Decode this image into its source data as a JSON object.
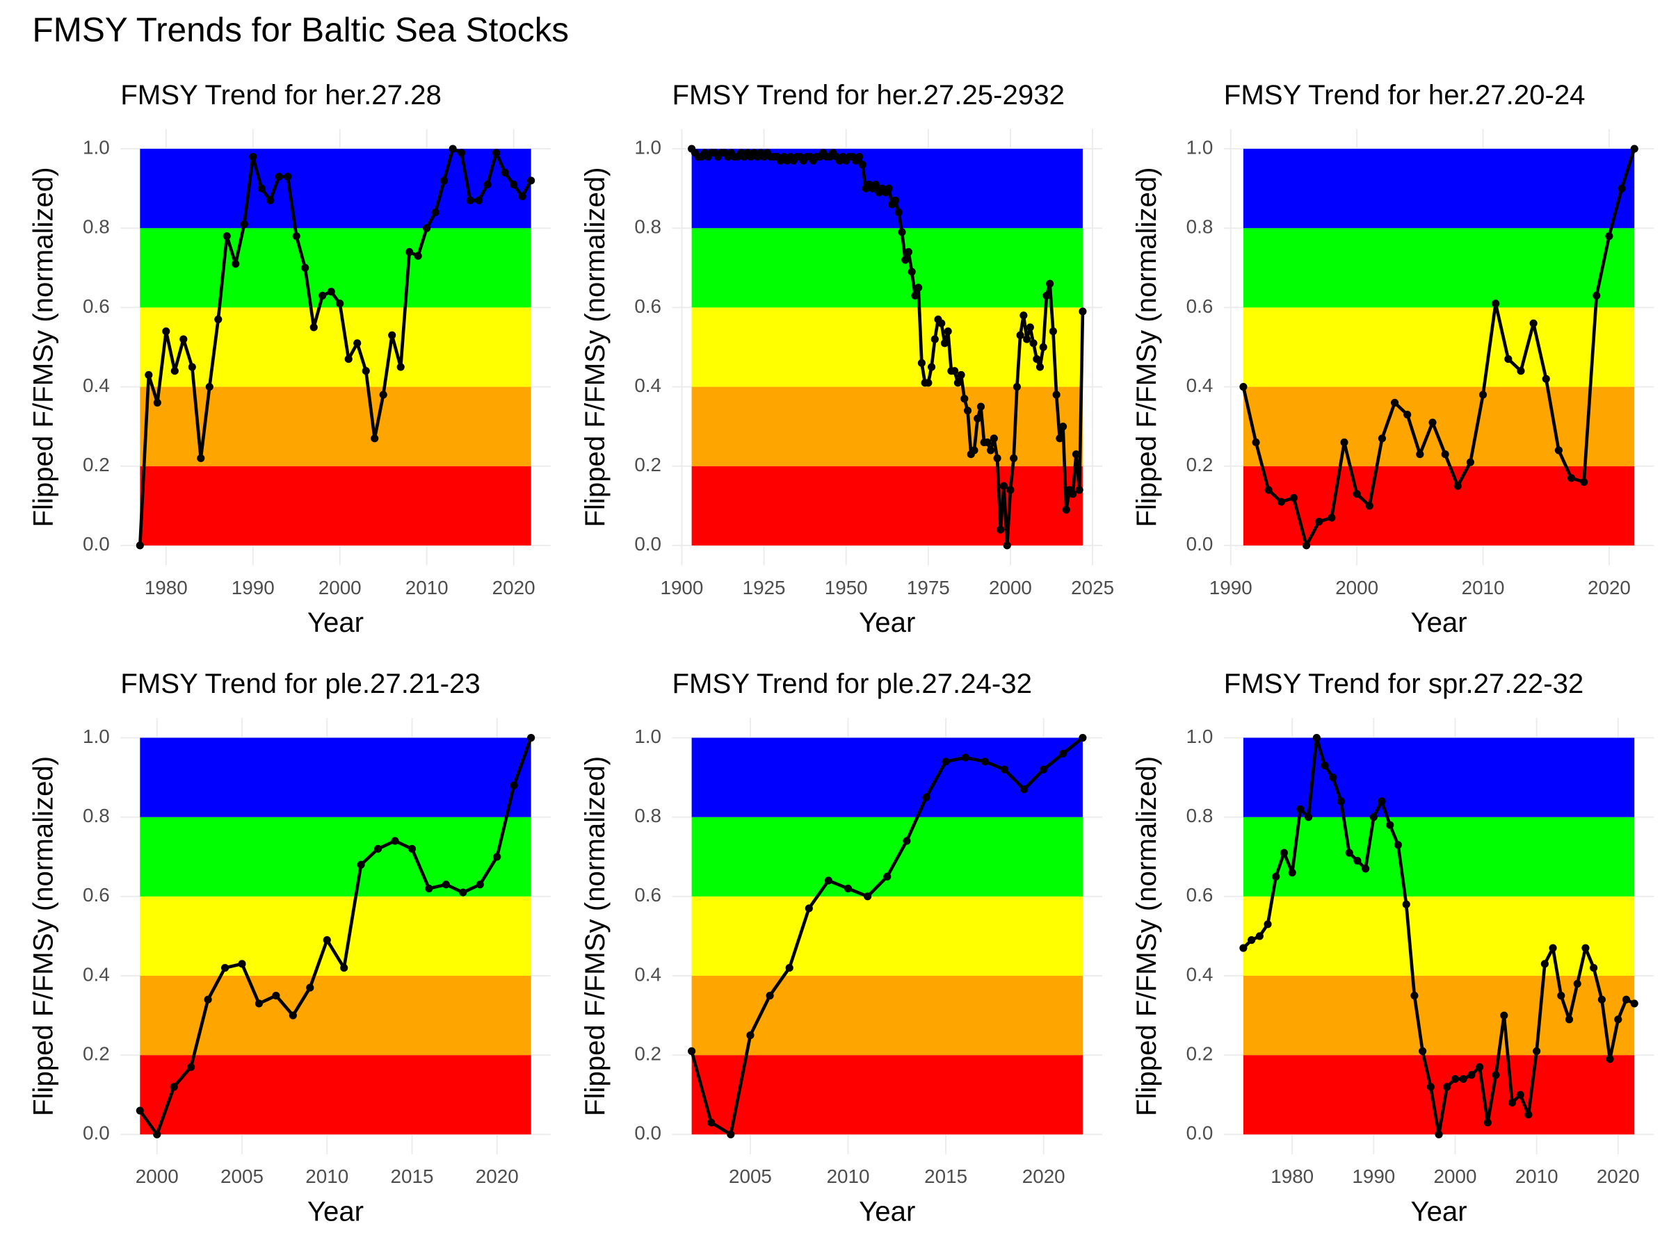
{
  "title": "FMSY Trends for Baltic Sea Stocks",
  "chart_data": [
    {
      "type": "line",
      "title": "FMSY Trend for her.27.28",
      "x_label": "Year",
      "y_label": "Flipped F/FMSy (normalized)",
      "color": "#000000",
      "x": [
        1977,
        1978,
        1979,
        1980,
        1981,
        1982,
        1983,
        1984,
        1985,
        1986,
        1987,
        1988,
        1989,
        1990,
        1991,
        1992,
        1993,
        1994,
        1995,
        1996,
        1997,
        1998,
        1999,
        2000,
        2001,
        2002,
        2003,
        2004,
        2005,
        2006,
        2007,
        2008,
        2009,
        2010,
        2011,
        2012,
        2013,
        2014,
        2015,
        2016,
        2017,
        2018,
        2019,
        2020,
        2021,
        2022
      ],
      "values": [
        0,
        0.43,
        0.36,
        0.54,
        0.44,
        0.52,
        0.45,
        0.22,
        0.4,
        0.57,
        0.78,
        0.71,
        0.81,
        0.98,
        0.9,
        0.87,
        0.93,
        0.93,
        0.78,
        0.7,
        0.55,
        0.63,
        0.64,
        0.61,
        0.47,
        0.51,
        0.44,
        0.27,
        0.38,
        0.53,
        0.45,
        0.74,
        0.73,
        0.8,
        0.84,
        0.92,
        1.0,
        0.99,
        0.87,
        0.87,
        0.91,
        0.99,
        0.94,
        0.91,
        0.88,
        0.92
      ],
      "xlim": [
        1974.75,
        2024.25
      ],
      "xticks": [
        1980,
        1990,
        2000,
        2010,
        2020
      ],
      "ylim": [
        -0.05,
        1.05
      ],
      "yticks": [
        {
          "value": 0,
          "label": "0.0"
        },
        {
          "value": 0.2,
          "label": "0.2"
        },
        {
          "value": 0.4,
          "label": "0.4"
        },
        {
          "value": 0.6,
          "label": "0.6"
        },
        {
          "value": 0.8,
          "label": "0.8"
        },
        {
          "value": 1,
          "label": "1.0"
        }
      ],
      "grid": true,
      "bands": [
        {
          "from": 0,
          "to": 0.2,
          "color": "#ff0000"
        },
        {
          "from": 0.2,
          "to": 0.4,
          "color": "#ffa500"
        },
        {
          "from": 0.4,
          "to": 0.6,
          "color": "#ffff00"
        },
        {
          "from": 0.6,
          "to": 0.8,
          "color": "#00ff00"
        },
        {
          "from": 0.8,
          "to": 1,
          "color": "#0000ff"
        }
      ]
    },
    {
      "type": "line",
      "title": "FMSY Trend for her.27.25-2932",
      "x_label": "Year",
      "y_label": "Flipped F/FMSy (normalized)",
      "color": "#000000",
      "x": [
        1903,
        1904,
        1905,
        1906,
        1907,
        1908,
        1909,
        1910,
        1911,
        1912,
        1913,
        1914,
        1915,
        1916,
        1917,
        1918,
        1919,
        1920,
        1921,
        1922,
        1923,
        1924,
        1925,
        1926,
        1927,
        1928,
        1929,
        1930,
        1931,
        1932,
        1933,
        1934,
        1935,
        1936,
        1937,
        1938,
        1939,
        1940,
        1941,
        1942,
        1943,
        1944,
        1945,
        1946,
        1947,
        1948,
        1949,
        1950,
        1951,
        1952,
        1953,
        1954,
        1955,
        1956,
        1957,
        1958,
        1959,
        1960,
        1961,
        1962,
        1963,
        1964,
        1965,
        1966,
        1967,
        1968,
        1969,
        1970,
        1971,
        1972,
        1973,
        1974,
        1975,
        1976,
        1977,
        1978,
        1979,
        1980,
        1981,
        1982,
        1983,
        1984,
        1985,
        1986,
        1987,
        1988,
        1989,
        1990,
        1991,
        1992,
        1993,
        1994,
        1995,
        1996,
        1997,
        1998,
        1999,
        2000,
        2001,
        2002,
        2003,
        2004,
        2005,
        2006,
        2007,
        2008,
        2009,
        2010,
        2011,
        2012,
        2013,
        2014,
        2015,
        2016,
        2017,
        2018,
        2019,
        2020,
        2021,
        2022
      ],
      "values": [
        1.0,
        0.99,
        0.98,
        0.98,
        0.99,
        0.98,
        0.99,
        0.99,
        0.98,
        0.99,
        0.99,
        0.98,
        0.99,
        0.98,
        0.98,
        0.99,
        0.98,
        0.99,
        0.98,
        0.99,
        0.98,
        0.99,
        0.98,
        0.99,
        0.98,
        0.98,
        0.98,
        0.97,
        0.98,
        0.97,
        0.98,
        0.97,
        0.98,
        0.98,
        0.97,
        0.98,
        0.98,
        0.97,
        0.98,
        0.98,
        0.99,
        0.98,
        0.98,
        0.99,
        0.98,
        0.97,
        0.98,
        0.97,
        0.98,
        0.98,
        0.97,
        0.98,
        0.96,
        0.9,
        0.91,
        0.9,
        0.91,
        0.89,
        0.9,
        0.89,
        0.9,
        0.86,
        0.87,
        0.84,
        0.79,
        0.72,
        0.74,
        0.69,
        0.63,
        0.65,
        0.46,
        0.41,
        0.41,
        0.45,
        0.52,
        0.57,
        0.56,
        0.51,
        0.54,
        0.44,
        0.44,
        0.41,
        0.43,
        0.37,
        0.34,
        0.23,
        0.24,
        0.32,
        0.35,
        0.26,
        0.26,
        0.24,
        0.27,
        0.22,
        0.04,
        0.15,
        0.0,
        0.14,
        0.22,
        0.4,
        0.53,
        0.58,
        0.52,
        0.55,
        0.51,
        0.47,
        0.45,
        0.5,
        0.63,
        0.66,
        0.54,
        0.38,
        0.27,
        0.3,
        0.09,
        0.14,
        0.13,
        0.23,
        0.14,
        0.59
      ],
      "xlim": [
        1897.05,
        2027.95
      ],
      "xticks": [
        1900,
        1925,
        1950,
        1975,
        2000,
        2025
      ],
      "ylim": [
        -0.05,
        1.05
      ],
      "yticks": [
        {
          "value": 0,
          "label": "0.0"
        },
        {
          "value": 0.2,
          "label": "0.2"
        },
        {
          "value": 0.4,
          "label": "0.4"
        },
        {
          "value": 0.6,
          "label": "0.6"
        },
        {
          "value": 0.8,
          "label": "0.8"
        },
        {
          "value": 1,
          "label": "1.0"
        }
      ],
      "grid": true,
      "bands": [
        {
          "from": 0,
          "to": 0.2,
          "color": "#ff0000"
        },
        {
          "from": 0.2,
          "to": 0.4,
          "color": "#ffa500"
        },
        {
          "from": 0.4,
          "to": 0.6,
          "color": "#ffff00"
        },
        {
          "from": 0.6,
          "to": 0.8,
          "color": "#00ff00"
        },
        {
          "from": 0.8,
          "to": 1,
          "color": "#0000ff"
        }
      ]
    },
    {
      "type": "line",
      "title": "FMSY Trend for her.27.20-24",
      "x_label": "Year",
      "y_label": "Flipped F/FMSy (normalized)",
      "color": "#000000",
      "x": [
        1991,
        1992,
        1993,
        1994,
        1995,
        1996,
        1997,
        1998,
        1999,
        2000,
        2001,
        2002,
        2003,
        2004,
        2005,
        2006,
        2007,
        2008,
        2009,
        2010,
        2011,
        2012,
        2013,
        2014,
        2015,
        2016,
        2017,
        2018,
        2019,
        2020,
        2021,
        2022
      ],
      "values": [
        0.4,
        0.26,
        0.14,
        0.11,
        0.12,
        0.0,
        0.06,
        0.07,
        0.26,
        0.13,
        0.1,
        0.27,
        0.36,
        0.33,
        0.23,
        0.31,
        0.23,
        0.15,
        0.21,
        0.38,
        0.61,
        0.47,
        0.44,
        0.56,
        0.42,
        0.24,
        0.17,
        0.16,
        0.63,
        0.78,
        0.9,
        1.0
      ],
      "xlim": [
        1989.45,
        2023.55
      ],
      "xticks": [
        1990,
        2000,
        2010,
        2020
      ],
      "ylim": [
        -0.05,
        1.05
      ],
      "yticks": [
        {
          "value": 0,
          "label": "0.0"
        },
        {
          "value": 0.2,
          "label": "0.2"
        },
        {
          "value": 0.4,
          "label": "0.4"
        },
        {
          "value": 0.6,
          "label": "0.6"
        },
        {
          "value": 0.8,
          "label": "0.8"
        },
        {
          "value": 1,
          "label": "1.0"
        }
      ],
      "grid": true,
      "bands": [
        {
          "from": 0,
          "to": 0.2,
          "color": "#ff0000"
        },
        {
          "from": 0.2,
          "to": 0.4,
          "color": "#ffa500"
        },
        {
          "from": 0.4,
          "to": 0.6,
          "color": "#ffff00"
        },
        {
          "from": 0.6,
          "to": 0.8,
          "color": "#00ff00"
        },
        {
          "from": 0.8,
          "to": 1,
          "color": "#0000ff"
        }
      ]
    },
    {
      "type": "line",
      "title": "FMSY Trend for ple.27.21-23",
      "x_label": "Year",
      "y_label": "Flipped F/FMSy (normalized)",
      "color": "#000000",
      "x": [
        1999,
        2000,
        2001,
        2002,
        2003,
        2004,
        2005,
        2006,
        2007,
        2008,
        2009,
        2010,
        2011,
        2012,
        2013,
        2014,
        2015,
        2016,
        2017,
        2018,
        2019,
        2020,
        2021,
        2022
      ],
      "values": [
        0.06,
        0.0,
        0.12,
        0.17,
        0.34,
        0.42,
        0.43,
        0.33,
        0.35,
        0.3,
        0.37,
        0.49,
        0.42,
        0.68,
        0.72,
        0.74,
        0.72,
        0.62,
        0.63,
        0.61,
        0.63,
        0.7,
        0.88,
        1.0
      ],
      "xlim": [
        1997.85,
        2023.15
      ],
      "xticks": [
        2000,
        2005,
        2010,
        2015,
        2020
      ],
      "ylim": [
        -0.05,
        1.05
      ],
      "yticks": [
        {
          "value": 0,
          "label": "0.0"
        },
        {
          "value": 0.2,
          "label": "0.2"
        },
        {
          "value": 0.4,
          "label": "0.4"
        },
        {
          "value": 0.6,
          "label": "0.6"
        },
        {
          "value": 0.8,
          "label": "0.8"
        },
        {
          "value": 1,
          "label": "1.0"
        }
      ],
      "grid": true,
      "bands": [
        {
          "from": 0,
          "to": 0.2,
          "color": "#ff0000"
        },
        {
          "from": 0.2,
          "to": 0.4,
          "color": "#ffa500"
        },
        {
          "from": 0.4,
          "to": 0.6,
          "color": "#ffff00"
        },
        {
          "from": 0.6,
          "to": 0.8,
          "color": "#00ff00"
        },
        {
          "from": 0.8,
          "to": 1,
          "color": "#0000ff"
        }
      ]
    },
    {
      "type": "line",
      "title": "FMSY Trend for ple.27.24-32",
      "x_label": "Year",
      "y_label": "Flipped F/FMSy (normalized)",
      "color": "#000000",
      "x": [
        2002,
        2003,
        2004,
        2005,
        2006,
        2007,
        2008,
        2009,
        2010,
        2011,
        2012,
        2013,
        2014,
        2015,
        2016,
        2017,
        2018,
        2019,
        2020,
        2021,
        2022
      ],
      "values": [
        0.21,
        0.03,
        0.0,
        0.25,
        0.35,
        0.42,
        0.57,
        0.64,
        0.62,
        0.6,
        0.65,
        0.74,
        0.85,
        0.94,
        0.95,
        0.94,
        0.92,
        0.87,
        0.92,
        0.96,
        1.0
      ],
      "xlim": [
        2001,
        2023
      ],
      "xticks": [
        2005,
        2010,
        2015,
        2020
      ],
      "ylim": [
        -0.05,
        1.05
      ],
      "yticks": [
        {
          "value": 0,
          "label": "0.0"
        },
        {
          "value": 0.2,
          "label": "0.2"
        },
        {
          "value": 0.4,
          "label": "0.4"
        },
        {
          "value": 0.6,
          "label": "0.6"
        },
        {
          "value": 0.8,
          "label": "0.8"
        },
        {
          "value": 1,
          "label": "1.0"
        }
      ],
      "grid": true,
      "bands": [
        {
          "from": 0,
          "to": 0.2,
          "color": "#ff0000"
        },
        {
          "from": 0.2,
          "to": 0.4,
          "color": "#ffa500"
        },
        {
          "from": 0.4,
          "to": 0.6,
          "color": "#ffff00"
        },
        {
          "from": 0.6,
          "to": 0.8,
          "color": "#00ff00"
        },
        {
          "from": 0.8,
          "to": 1,
          "color": "#0000ff"
        }
      ]
    },
    {
      "type": "line",
      "title": "FMSY Trend for spr.27.22-32",
      "x_label": "Year",
      "y_label": "Flipped F/FMSy (normalized)",
      "color": "#000000",
      "x": [
        1974,
        1975,
        1976,
        1977,
        1978,
        1979,
        1980,
        1981,
        1982,
        1983,
        1984,
        1985,
        1986,
        1987,
        1988,
        1989,
        1990,
        1991,
        1992,
        1993,
        1994,
        1995,
        1996,
        1997,
        1998,
        1999,
        2000,
        2001,
        2002,
        2003,
        2004,
        2005,
        2006,
        2007,
        2008,
        2009,
        2010,
        2011,
        2012,
        2013,
        2014,
        2015,
        2016,
        2017,
        2018,
        2019,
        2020,
        2021,
        2022
      ],
      "values": [
        0.47,
        0.49,
        0.5,
        0.53,
        0.65,
        0.71,
        0.66,
        0.82,
        0.8,
        1.0,
        0.93,
        0.9,
        0.84,
        0.71,
        0.69,
        0.67,
        0.8,
        0.84,
        0.78,
        0.73,
        0.58,
        0.35,
        0.21,
        0.12,
        0.0,
        0.12,
        0.14,
        0.14,
        0.15,
        0.17,
        0.03,
        0.15,
        0.3,
        0.08,
        0.1,
        0.05,
        0.21,
        0.43,
        0.47,
        0.35,
        0.29,
        0.38,
        0.47,
        0.42,
        0.34,
        0.19,
        0.29,
        0.34,
        0.33
      ],
      "xlim": [
        1971.6,
        2024.4
      ],
      "xticks": [
        1980,
        1990,
        2000,
        2010,
        2020
      ],
      "ylim": [
        -0.05,
        1.05
      ],
      "yticks": [
        {
          "value": 0,
          "label": "0.0"
        },
        {
          "value": 0.2,
          "label": "0.2"
        },
        {
          "value": 0.4,
          "label": "0.4"
        },
        {
          "value": 0.6,
          "label": "0.6"
        },
        {
          "value": 0.8,
          "label": "0.8"
        },
        {
          "value": 1,
          "label": "1.0"
        }
      ],
      "grid": true,
      "bands": [
        {
          "from": 0,
          "to": 0.2,
          "color": "#ff0000"
        },
        {
          "from": 0.2,
          "to": 0.4,
          "color": "#ffa500"
        },
        {
          "from": 0.4,
          "to": 0.6,
          "color": "#ffff00"
        },
        {
          "from": 0.6,
          "to": 0.8,
          "color": "#00ff00"
        },
        {
          "from": 0.8,
          "to": 1,
          "color": "#0000ff"
        }
      ]
    }
  ]
}
